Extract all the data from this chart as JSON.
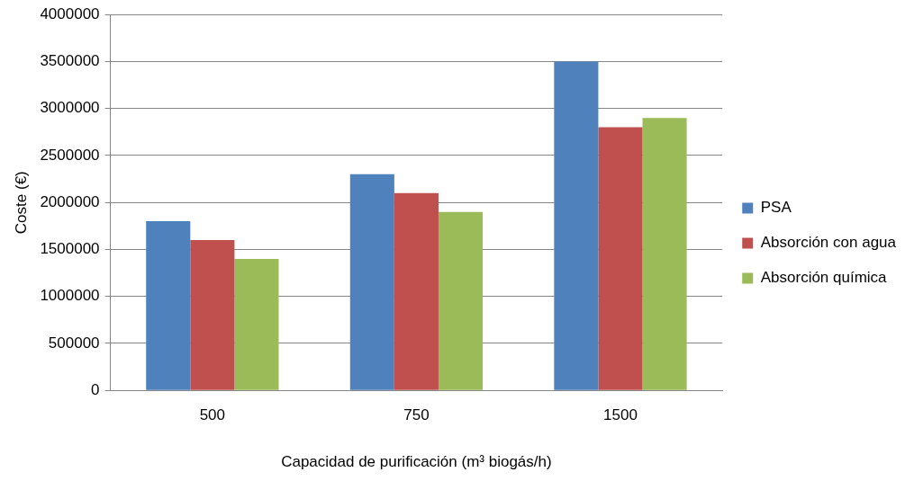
{
  "chart_data": {
    "type": "bar",
    "xlabel": "Capacidad de purificación (m³ biogás/h)",
    "ylabel": "Coste (€)",
    "categories": [
      "500",
      "750",
      "1500"
    ],
    "series": [
      {
        "name": "PSA",
        "color": "#4f81bd",
        "values": [
          1800000,
          2300000,
          3500000
        ]
      },
      {
        "name": "Absorción con agua",
        "color": "#c0504d",
        "values": [
          1600000,
          2100000,
          2800000
        ]
      },
      {
        "name": "Absorción química",
        "color": "#9bbb59",
        "values": [
          1400000,
          1900000,
          2900000
        ]
      }
    ],
    "ylim": [
      0,
      4000000
    ],
    "yticks": [
      0,
      500000,
      1000000,
      1500000,
      2000000,
      2500000,
      3000000,
      3500000,
      4000000
    ],
    "grid": "y",
    "legend": "right"
  }
}
